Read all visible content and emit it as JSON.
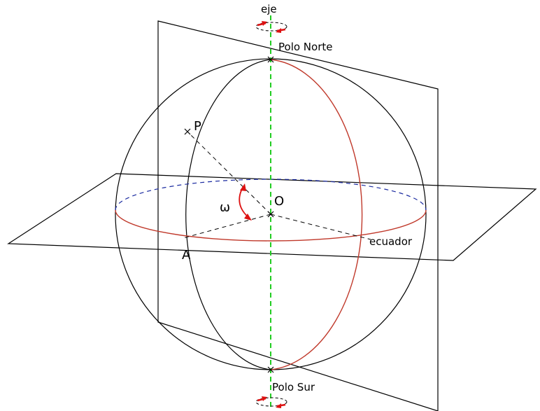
{
  "labels": {
    "axis": "eje",
    "north_pole": "Polo Norte",
    "south_pole": "Polo Sur",
    "point_p": "P",
    "center_o": "O",
    "point_a": "A",
    "equator": "ecuador",
    "angle": "ω"
  },
  "colors": {
    "outline": "#000000",
    "red_arc": "#c0392b",
    "axis_dashed": "#22cc22",
    "equator_back": "#1a2aa0",
    "rotation_arrow": "#dd1111"
  }
}
